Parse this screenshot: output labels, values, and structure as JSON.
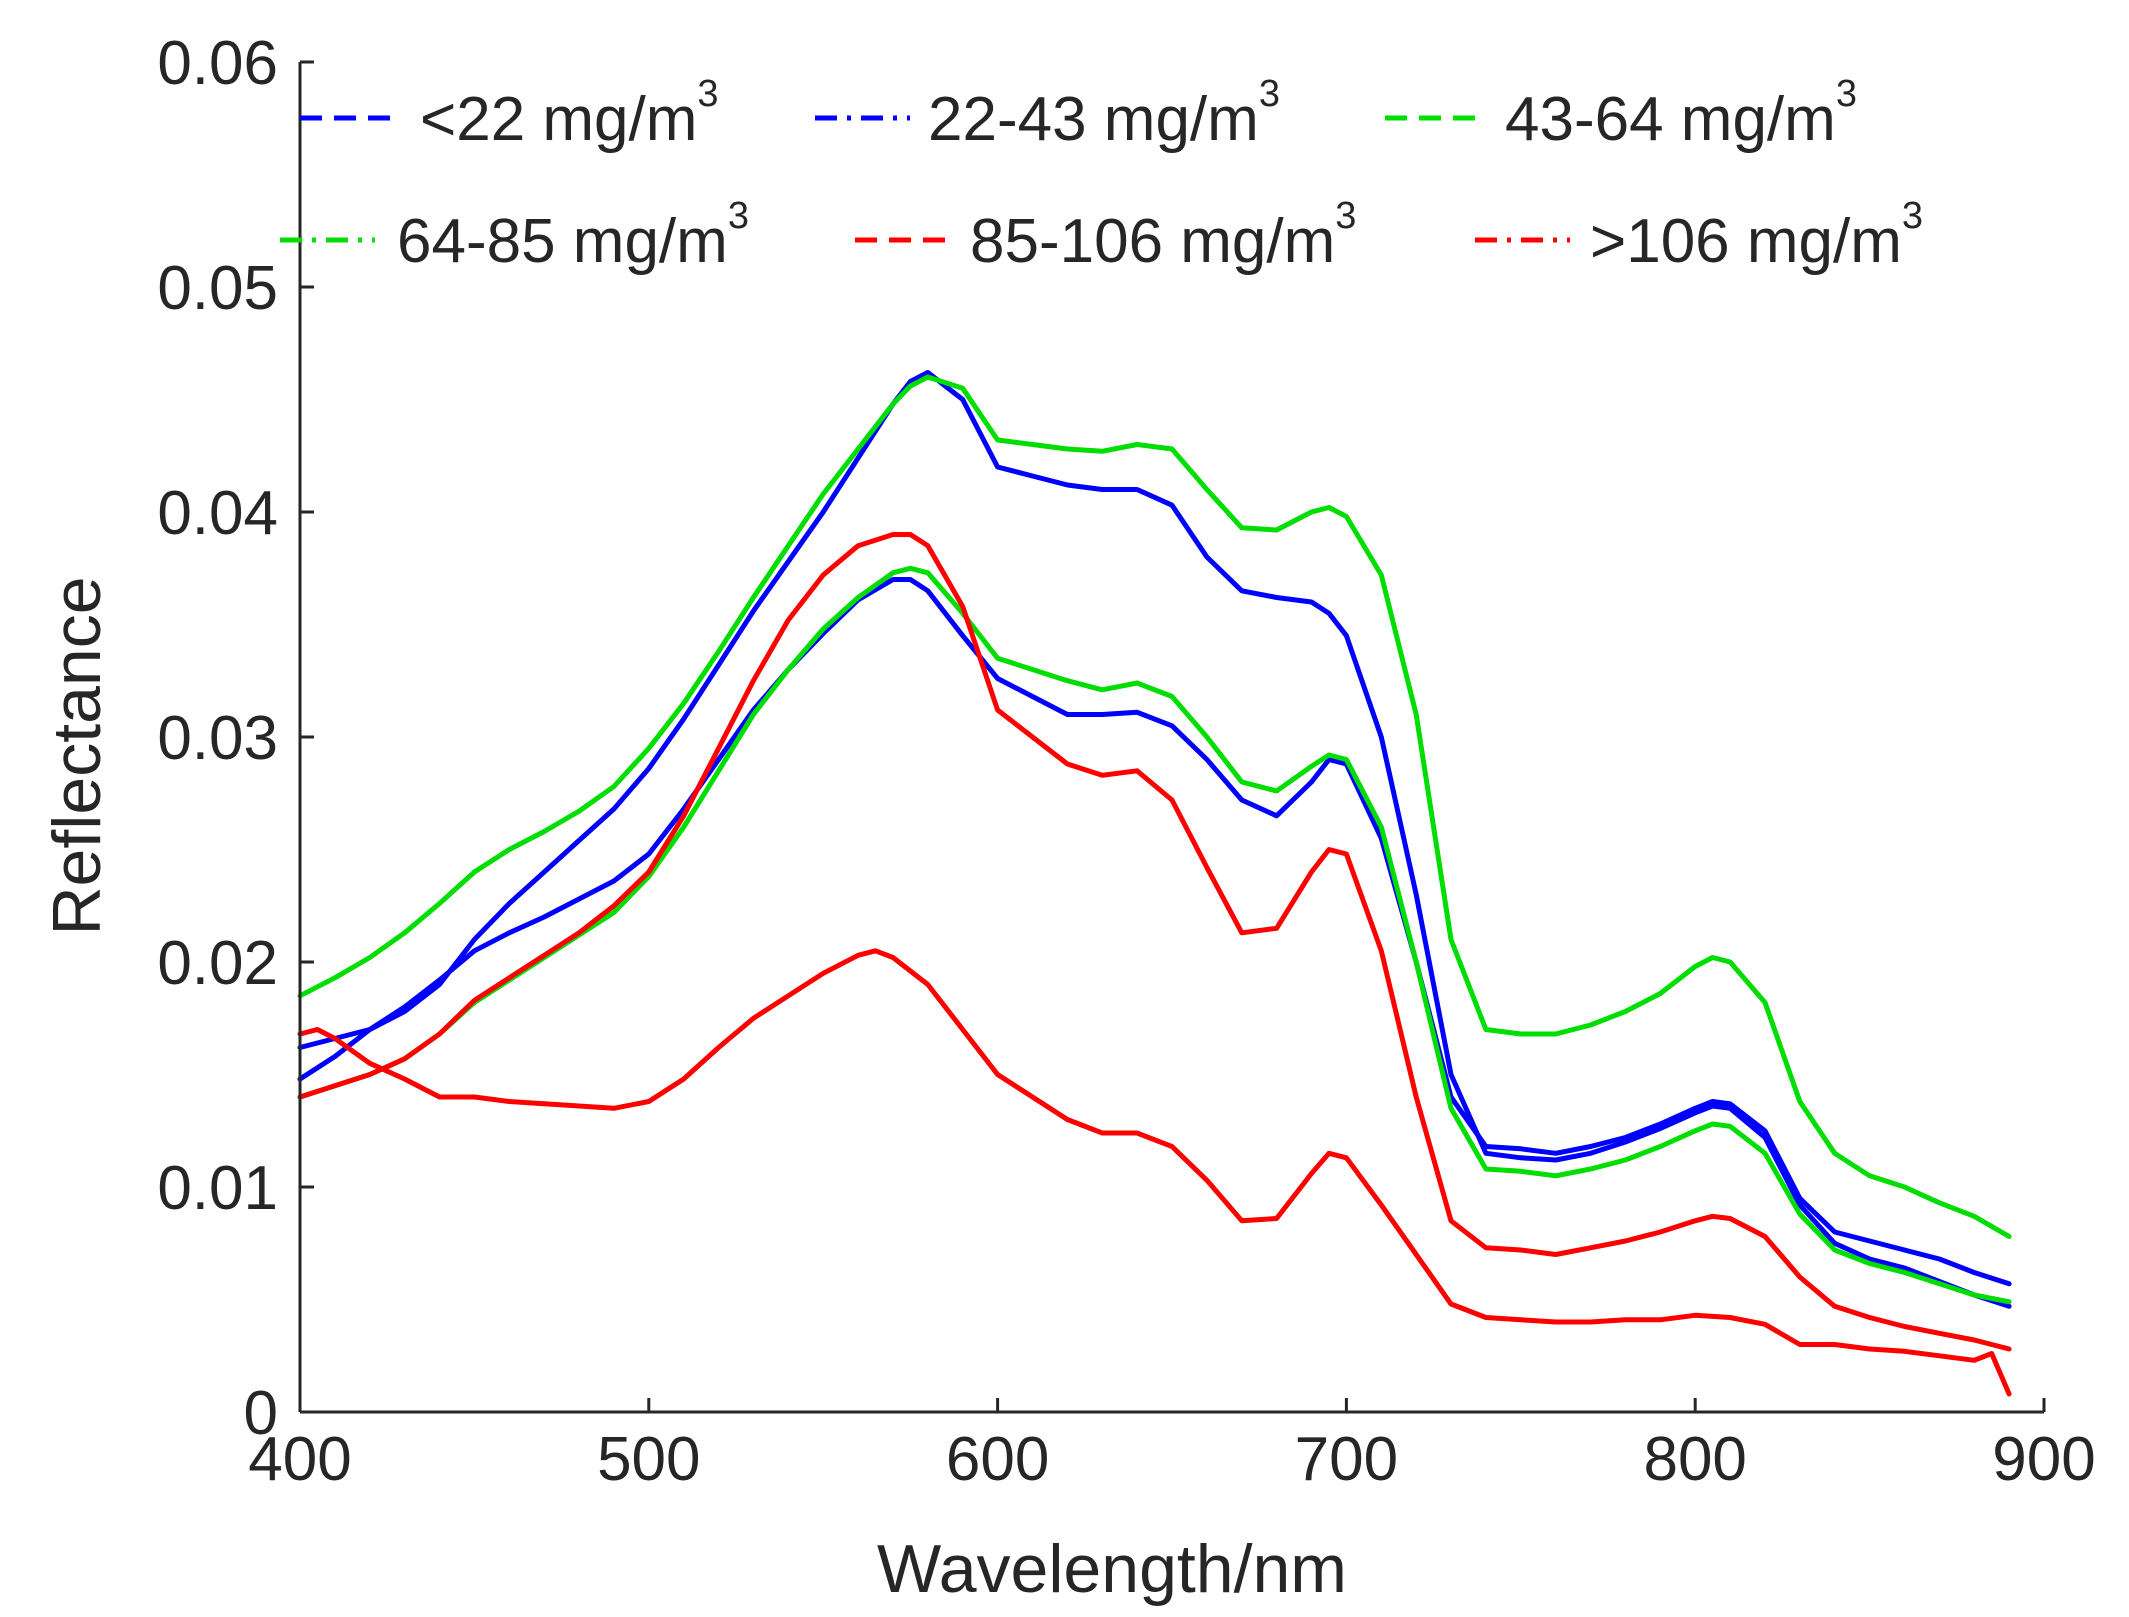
{
  "chart_data": {
    "type": "line",
    "title": "",
    "xlabel": "Wavelength/nm",
    "ylabel": "Reflectance",
    "xlim": [
      400,
      900
    ],
    "ylim": [
      0,
      0.06
    ],
    "xticks": [
      400,
      500,
      600,
      700,
      800,
      900
    ],
    "xtick_labels": [
      "400",
      "500",
      "600",
      "700",
      "800",
      "900"
    ],
    "yticks": [
      0,
      0.01,
      0.02,
      0.03,
      0.04,
      0.05,
      0.06
    ],
    "ytick_labels": [
      "0",
      "0.01",
      "0.02",
      "0.03",
      "0.04",
      "0.05",
      "0.06"
    ],
    "grid": false,
    "legend_position": "top",
    "series": [
      {
        "name": "<22 mg/m3",
        "label_main": "<22 mg/m",
        "label_sup": "3",
        "color": "#0000ff",
        "dash": "dashed",
        "x": [
          400,
          410,
          420,
          430,
          440,
          450,
          460,
          470,
          480,
          490,
          500,
          510,
          520,
          530,
          540,
          550,
          560,
          570,
          575,
          580,
          590,
          600,
          610,
          620,
          630,
          640,
          650,
          660,
          670,
          680,
          690,
          695,
          700,
          710,
          720,
          730,
          740,
          750,
          760,
          770,
          780,
          790,
          800,
          805,
          810,
          820,
          830,
          840,
          850,
          860,
          870,
          880,
          890
        ],
        "y": [
          0.0148,
          0.0158,
          0.017,
          0.018,
          0.0192,
          0.0205,
          0.0213,
          0.022,
          0.0228,
          0.0236,
          0.0248,
          0.0268,
          0.029,
          0.0312,
          0.033,
          0.0346,
          0.0361,
          0.037,
          0.037,
          0.0365,
          0.0345,
          0.0326,
          0.0318,
          0.031,
          0.031,
          0.0311,
          0.0305,
          0.029,
          0.0272,
          0.0265,
          0.028,
          0.029,
          0.0288,
          0.0255,
          0.02,
          0.014,
          0.0118,
          0.0117,
          0.0115,
          0.0118,
          0.0122,
          0.0128,
          0.0135,
          0.0138,
          0.0137,
          0.0125,
          0.0095,
          0.008,
          0.0076,
          0.0072,
          0.0068,
          0.0062,
          0.0057
        ]
      },
      {
        "name": "22-43 mg/m3",
        "label_main": "22-43 mg/m",
        "label_sup": "3",
        "color": "#0000ff",
        "dash": "dashdot",
        "x": [
          400,
          410,
          420,
          430,
          440,
          450,
          460,
          470,
          480,
          490,
          500,
          510,
          520,
          530,
          540,
          550,
          560,
          570,
          575,
          580,
          590,
          600,
          610,
          620,
          630,
          640,
          650,
          660,
          670,
          680,
          690,
          695,
          700,
          710,
          720,
          730,
          740,
          750,
          760,
          770,
          780,
          790,
          800,
          805,
          810,
          820,
          830,
          840,
          850,
          860,
          870,
          880,
          890
        ],
        "y": [
          0.0162,
          0.0166,
          0.017,
          0.0178,
          0.019,
          0.021,
          0.0226,
          0.024,
          0.0254,
          0.0268,
          0.0286,
          0.0308,
          0.0332,
          0.0356,
          0.0378,
          0.04,
          0.0424,
          0.0448,
          0.0458,
          0.0462,
          0.045,
          0.042,
          0.0416,
          0.0412,
          0.041,
          0.041,
          0.0403,
          0.038,
          0.0365,
          0.0362,
          0.036,
          0.0355,
          0.0345,
          0.03,
          0.023,
          0.015,
          0.0115,
          0.0113,
          0.0112,
          0.0115,
          0.012,
          0.0126,
          0.0133,
          0.0136,
          0.0135,
          0.0122,
          0.0092,
          0.0075,
          0.0068,
          0.0064,
          0.0058,
          0.0052,
          0.0047
        ]
      },
      {
        "name": "43-64 mg/m3",
        "label_main": "43-64 mg/m",
        "label_sup": "3",
        "color": "#00dd00",
        "dash": "dashed",
        "x": [
          400,
          410,
          420,
          430,
          440,
          450,
          460,
          470,
          480,
          490,
          500,
          510,
          520,
          530,
          540,
          550,
          560,
          570,
          575,
          580,
          590,
          600,
          610,
          620,
          630,
          640,
          650,
          660,
          670,
          680,
          690,
          695,
          700,
          710,
          720,
          730,
          740,
          750,
          760,
          770,
          780,
          790,
          800,
          805,
          810,
          820,
          830,
          840,
          850,
          860,
          870,
          880,
          890
        ],
        "y": [
          0.0185,
          0.0193,
          0.0202,
          0.0213,
          0.0226,
          0.024,
          0.025,
          0.0258,
          0.0267,
          0.0278,
          0.0295,
          0.0315,
          0.0338,
          0.0362,
          0.0385,
          0.0408,
          0.0428,
          0.0448,
          0.0456,
          0.046,
          0.0455,
          0.0432,
          0.043,
          0.0428,
          0.0427,
          0.043,
          0.0428,
          0.041,
          0.0393,
          0.0392,
          0.04,
          0.0402,
          0.0398,
          0.0372,
          0.031,
          0.021,
          0.017,
          0.0168,
          0.0168,
          0.0172,
          0.0178,
          0.0186,
          0.0198,
          0.0202,
          0.02,
          0.0182,
          0.0138,
          0.0115,
          0.0105,
          0.01,
          0.0093,
          0.0087,
          0.0078
        ]
      },
      {
        "name": "64-85 mg/m3",
        "label_main": "64-85 mg/m",
        "label_sup": "3",
        "color": "#00dd00",
        "dash": "dashdot",
        "x": [
          400,
          410,
          420,
          430,
          440,
          450,
          460,
          470,
          480,
          490,
          500,
          510,
          520,
          530,
          540,
          550,
          560,
          570,
          575,
          580,
          590,
          600,
          610,
          620,
          630,
          640,
          650,
          660,
          670,
          680,
          690,
          695,
          700,
          710,
          720,
          730,
          740,
          750,
          760,
          770,
          780,
          790,
          800,
          805,
          810,
          820,
          830,
          840,
          850,
          860,
          870,
          880,
          890
        ],
        "y": [
          0.014,
          0.0145,
          0.015,
          0.0157,
          0.0168,
          0.0182,
          0.0192,
          0.0202,
          0.0212,
          0.0222,
          0.0238,
          0.026,
          0.0285,
          0.031,
          0.033,
          0.0348,
          0.0362,
          0.0373,
          0.0375,
          0.0373,
          0.0355,
          0.0335,
          0.033,
          0.0325,
          0.0321,
          0.0324,
          0.0318,
          0.03,
          0.028,
          0.0276,
          0.0287,
          0.0292,
          0.029,
          0.026,
          0.02,
          0.0135,
          0.0108,
          0.0107,
          0.0105,
          0.0108,
          0.0112,
          0.0118,
          0.0125,
          0.0128,
          0.0127,
          0.0115,
          0.0088,
          0.0072,
          0.0066,
          0.0062,
          0.0057,
          0.0052,
          0.0049
        ]
      },
      {
        "name": "85-106 mg/m3",
        "label_main": "85-106 mg/m",
        "label_sup": "3",
        "color": "#ff0000",
        "dash": "dashed",
        "x": [
          400,
          410,
          420,
          430,
          440,
          450,
          460,
          470,
          480,
          490,
          500,
          510,
          520,
          530,
          540,
          550,
          560,
          570,
          575,
          580,
          590,
          600,
          610,
          620,
          630,
          640,
          650,
          660,
          670,
          680,
          690,
          695,
          700,
          710,
          720,
          730,
          740,
          750,
          760,
          770,
          780,
          790,
          800,
          805,
          810,
          820,
          830,
          840,
          850,
          860,
          870,
          880,
          890
        ],
        "y": [
          0.014,
          0.0145,
          0.015,
          0.0157,
          0.0168,
          0.0183,
          0.0193,
          0.0203,
          0.0213,
          0.0225,
          0.024,
          0.0265,
          0.0295,
          0.0325,
          0.0352,
          0.0372,
          0.0385,
          0.039,
          0.039,
          0.0385,
          0.0358,
          0.0312,
          0.03,
          0.0288,
          0.0283,
          0.0285,
          0.0272,
          0.0242,
          0.0213,
          0.0215,
          0.024,
          0.025,
          0.0248,
          0.0205,
          0.014,
          0.0085,
          0.0073,
          0.0072,
          0.007,
          0.0073,
          0.0076,
          0.008,
          0.0085,
          0.0087,
          0.0086,
          0.0078,
          0.006,
          0.0047,
          0.0042,
          0.0038,
          0.0035,
          0.0032,
          0.0028
        ]
      },
      {
        "name": ">106 mg/m3",
        "label_main": ">106 mg/m",
        "label_sup": "3",
        "color": "#ff0000",
        "dash": "dashdot",
        "x": [
          400,
          405,
          410,
          420,
          430,
          440,
          450,
          460,
          470,
          480,
          490,
          500,
          510,
          520,
          530,
          540,
          550,
          560,
          565,
          570,
          580,
          590,
          600,
          610,
          620,
          630,
          640,
          650,
          660,
          670,
          680,
          690,
          695,
          700,
          710,
          720,
          730,
          740,
          750,
          760,
          770,
          780,
          790,
          800,
          810,
          820,
          830,
          840,
          850,
          860,
          870,
          880,
          885,
          890
        ],
        "y": [
          0.0168,
          0.017,
          0.0166,
          0.0155,
          0.0148,
          0.014,
          0.014,
          0.0138,
          0.0137,
          0.0136,
          0.0135,
          0.0138,
          0.0148,
          0.0162,
          0.0175,
          0.0185,
          0.0195,
          0.0203,
          0.0205,
          0.0202,
          0.019,
          0.017,
          0.015,
          0.014,
          0.013,
          0.0124,
          0.0124,
          0.0118,
          0.0103,
          0.0085,
          0.0086,
          0.0106,
          0.0115,
          0.0113,
          0.0092,
          0.007,
          0.0048,
          0.0042,
          0.0041,
          0.004,
          0.004,
          0.0041,
          0.0041,
          0.0043,
          0.0042,
          0.0039,
          0.003,
          0.003,
          0.0028,
          0.0027,
          0.0025,
          0.0023,
          0.0026,
          0.0008
        ]
      }
    ]
  }
}
